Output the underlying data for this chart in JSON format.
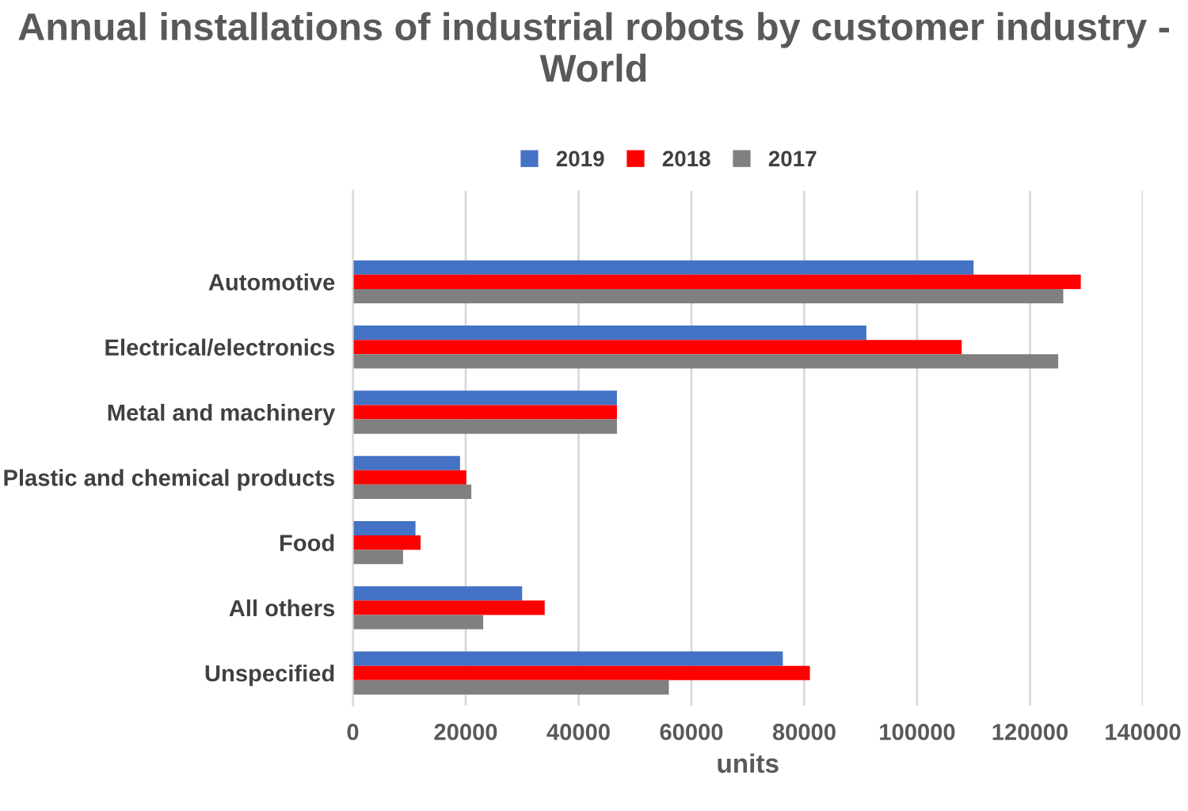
{
  "chart_data": {
    "type": "bar",
    "orientation": "horizontal",
    "title": "Annual installations of industrial robots by customer industry - World",
    "xlabel": "units",
    "categories": [
      "Automotive",
      "Electrical/electronics",
      "Metal and machinery",
      "Plastic and chemical products",
      "Food",
      "All others",
      "Unspecified"
    ],
    "series": [
      {
        "name": "2019",
        "color": "#4472c4",
        "values": [
          110000,
          91000,
          46800,
          19000,
          11100,
          30000,
          76200
        ]
      },
      {
        "name": "2018",
        "color": "#ff0000",
        "values": [
          129000,
          107900,
          46800,
          20100,
          12000,
          34000,
          81000
        ]
      },
      {
        "name": "2017",
        "color": "#808080",
        "values": [
          125900,
          125000,
          46800,
          21000,
          8900,
          23100,
          56000
        ]
      }
    ],
    "xlim": [
      0,
      140000
    ],
    "xticks": [
      0,
      20000,
      40000,
      60000,
      80000,
      100000,
      120000,
      140000
    ],
    "grid": "x",
    "legend": "top"
  }
}
